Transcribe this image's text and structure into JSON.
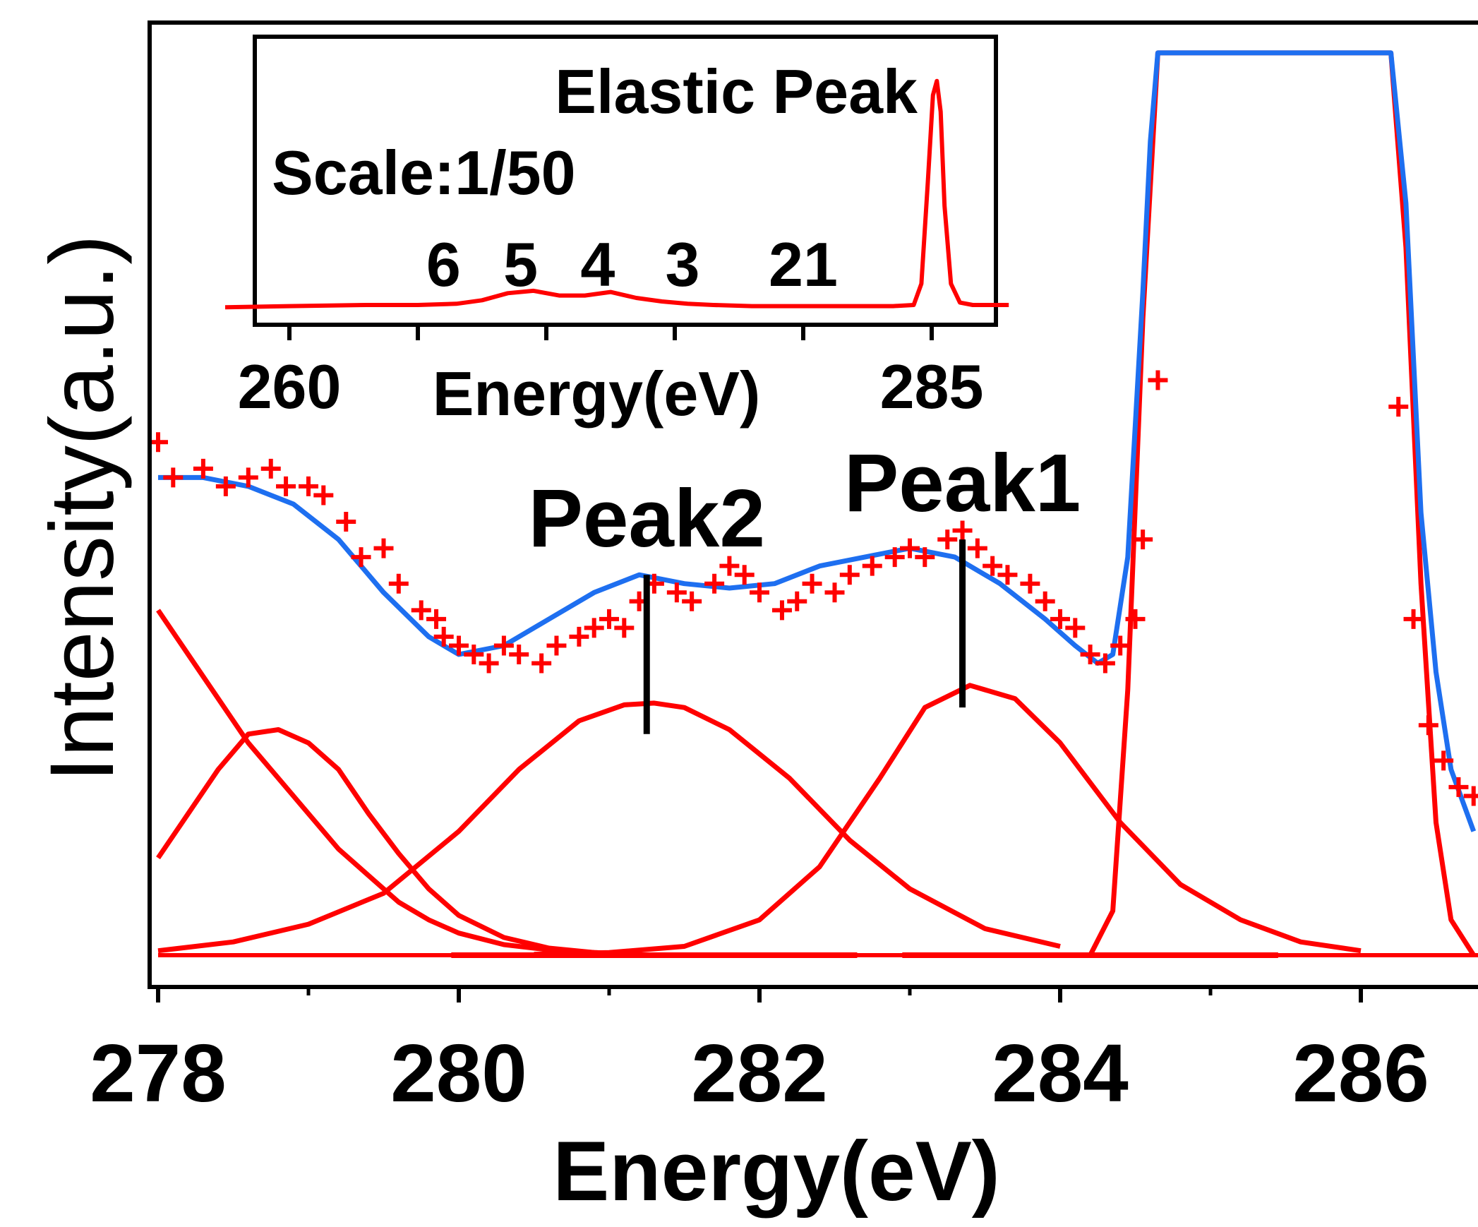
{
  "chart_data": [
    {
      "type": "scatter",
      "role": "main",
      "xlabel": "Energy(eV)",
      "ylabel": "Intensity(a.u.)",
      "xlim": [
        278,
        286.75
      ],
      "ylim": [
        0,
        1
      ],
      "xticks": [
        278,
        280,
        282,
        284,
        286
      ],
      "grid": false,
      "colors": {
        "data": "#ff0000",
        "fit": "#1e6ff0",
        "component": "#ff0000",
        "marker": "#000000"
      },
      "annotations": [
        {
          "text": "Peak2",
          "x": 281.25,
          "y_top": 0.43,
          "y_bottom": 0.25
        },
        {
          "text": "Peak1",
          "x": 283.35,
          "y_top": 0.47,
          "y_bottom": 0.28
        }
      ],
      "series": [
        {
          "kind": "data-points",
          "x": [
            278.0,
            278.1,
            278.3,
            278.45,
            278.6,
            278.75,
            278.85,
            279.0,
            279.1,
            279.25,
            279.35,
            279.5,
            279.6,
            279.75,
            279.85,
            279.9,
            280.0,
            280.1,
            280.2,
            280.3,
            280.4,
            280.55,
            280.65,
            280.8,
            280.9,
            281.0,
            281.1,
            281.2,
            281.3,
            281.45,
            281.55,
            281.7,
            281.8,
            281.9,
            282.0,
            282.15,
            282.25,
            282.35,
            282.5,
            282.6,
            282.75,
            282.9,
            283.0,
            283.1,
            283.25,
            283.35,
            283.45,
            283.55,
            283.65,
            283.8,
            283.9,
            284.0,
            284.1,
            284.2,
            284.3,
            284.4,
            284.5,
            284.55,
            284.65,
            286.25,
            286.35,
            286.45,
            286.55,
            286.65,
            286.75
          ],
          "y": [
            0.58,
            0.54,
            0.55,
            0.53,
            0.54,
            0.55,
            0.53,
            0.53,
            0.52,
            0.49,
            0.45,
            0.46,
            0.42,
            0.39,
            0.38,
            0.36,
            0.35,
            0.34,
            0.33,
            0.35,
            0.34,
            0.33,
            0.35,
            0.36,
            0.37,
            0.38,
            0.37,
            0.4,
            0.42,
            0.41,
            0.4,
            0.42,
            0.44,
            0.43,
            0.41,
            0.39,
            0.4,
            0.42,
            0.41,
            0.43,
            0.44,
            0.45,
            0.46,
            0.45,
            0.47,
            0.48,
            0.46,
            0.44,
            0.43,
            0.42,
            0.4,
            0.38,
            0.37,
            0.34,
            0.33,
            0.35,
            0.38,
            0.47,
            0.65,
            0.62,
            0.38,
            0.26,
            0.22,
            0.19,
            0.18
          ]
        },
        {
          "kind": "fit-envelope",
          "x": [
            278.0,
            278.3,
            278.6,
            278.9,
            279.2,
            279.5,
            279.8,
            280.0,
            280.3,
            280.6,
            280.9,
            281.2,
            281.5,
            281.8,
            282.1,
            282.4,
            282.7,
            283.0,
            283.3,
            283.6,
            283.9,
            284.1,
            284.25,
            284.35,
            284.45,
            284.55,
            284.6,
            284.65,
            286.2,
            286.3,
            286.4,
            286.5,
            286.6,
            286.75
          ],
          "y": [
            0.54,
            0.54,
            0.53,
            0.51,
            0.47,
            0.41,
            0.36,
            0.34,
            0.35,
            0.38,
            0.41,
            0.43,
            0.42,
            0.415,
            0.42,
            0.44,
            0.45,
            0.46,
            0.45,
            0.42,
            0.38,
            0.35,
            0.33,
            0.34,
            0.45,
            0.75,
            0.92,
            1.02,
            1.02,
            0.85,
            0.5,
            0.32,
            0.21,
            0.14
          ]
        },
        {
          "kind": "fit-component",
          "x": [
            278.0,
            278.2,
            278.4,
            278.6,
            278.8,
            279.0,
            279.2,
            279.4,
            279.6,
            279.8,
            280.0,
            280.3,
            280.6,
            280.9,
            281.2
          ],
          "y": [
            0.39,
            0.34,
            0.29,
            0.24,
            0.2,
            0.16,
            0.12,
            0.09,
            0.06,
            0.04,
            0.025,
            0.012,
            0.006,
            0.003,
            0.001
          ]
        },
        {
          "kind": "fit-component",
          "x": [
            278.0,
            278.2,
            278.4,
            278.6,
            278.8,
            279.0,
            279.2,
            279.4,
            279.6,
            279.8,
            280.0,
            280.3,
            280.6,
            280.9,
            281.2
          ],
          "y": [
            0.11,
            0.16,
            0.21,
            0.25,
            0.255,
            0.24,
            0.21,
            0.16,
            0.115,
            0.075,
            0.045,
            0.02,
            0.008,
            0.003,
            0.001
          ]
        },
        {
          "kind": "fit-component",
          "x": [
            278.0,
            278.5,
            279.0,
            279.5,
            280.0,
            280.4,
            280.8,
            281.1,
            281.3,
            281.5,
            281.8,
            282.2,
            282.6,
            283.0,
            283.5,
            284.0
          ],
          "y": [
            0.005,
            0.015,
            0.035,
            0.07,
            0.14,
            0.21,
            0.265,
            0.283,
            0.285,
            0.28,
            0.255,
            0.2,
            0.13,
            0.075,
            0.03,
            0.01
          ]
        },
        {
          "kind": "fit-component",
          "x": [
            280.5,
            281.0,
            281.5,
            282.0,
            282.4,
            282.8,
            283.1,
            283.4,
            283.7,
            284.0,
            284.4,
            284.8,
            285.2,
            285.6,
            286.0
          ],
          "y": [
            0.001,
            0.003,
            0.01,
            0.04,
            0.1,
            0.2,
            0.28,
            0.305,
            0.29,
            0.24,
            0.15,
            0.08,
            0.04,
            0.015,
            0.005
          ]
        },
        {
          "kind": "fit-component",
          "x": [
            284.2,
            284.35,
            284.45,
            284.55,
            284.65,
            286.2,
            286.3,
            286.4,
            286.5,
            286.6,
            286.75
          ],
          "y": [
            0.0,
            0.05,
            0.3,
            0.72,
            1.02,
            1.02,
            0.8,
            0.42,
            0.15,
            0.04,
            0.0
          ]
        },
        {
          "kind": "baseline-segment",
          "x": [
            279.95,
            282.65
          ],
          "y": [
            0.0,
            0.0
          ]
        },
        {
          "kind": "baseline-segment",
          "x": [
            282.95,
            285.45
          ],
          "y": [
            0.0,
            0.0
          ]
        }
      ]
    },
    {
      "type": "line",
      "role": "inset",
      "title": "Elastic Peak",
      "subtitle": "Scale:1/50",
      "xlabel": "Energy(eV)",
      "xlim": [
        257.5,
        288
      ],
      "ylim": [
        0,
        1
      ],
      "xticks": [
        260,
        265,
        270,
        275,
        280,
        285
      ],
      "xtick_labels": [
        "260",
        "",
        "",
        "",
        "",
        "285"
      ],
      "peak_labels": [
        {
          "text": "6",
          "x": 266
        },
        {
          "text": "5",
          "x": 269
        },
        {
          "text": "4",
          "x": 272
        },
        {
          "text": "3",
          "x": 275.3
        },
        {
          "text": "21",
          "x": 280
        }
      ],
      "color": "#ff0000",
      "series": [
        {
          "x": [
            257.5,
            260,
            263,
            265,
            266.5,
            267.5,
            268.5,
            269.5,
            270.5,
            271.5,
            272.5,
            273.5,
            274.5,
            275.5,
            276.5,
            278,
            280,
            282,
            283.5,
            284.3,
            284.6,
            284.85,
            285.05,
            285.2,
            285.35,
            285.5,
            285.75,
            286.1,
            286.6,
            287,
            288
          ],
          "y": [
            0.02,
            0.025,
            0.03,
            0.03,
            0.035,
            0.05,
            0.08,
            0.09,
            0.07,
            0.07,
            0.085,
            0.06,
            0.045,
            0.035,
            0.03,
            0.025,
            0.025,
            0.025,
            0.025,
            0.03,
            0.12,
            0.55,
            0.92,
            0.98,
            0.85,
            0.45,
            0.12,
            0.04,
            0.03,
            0.03,
            0.03
          ]
        }
      ]
    }
  ]
}
